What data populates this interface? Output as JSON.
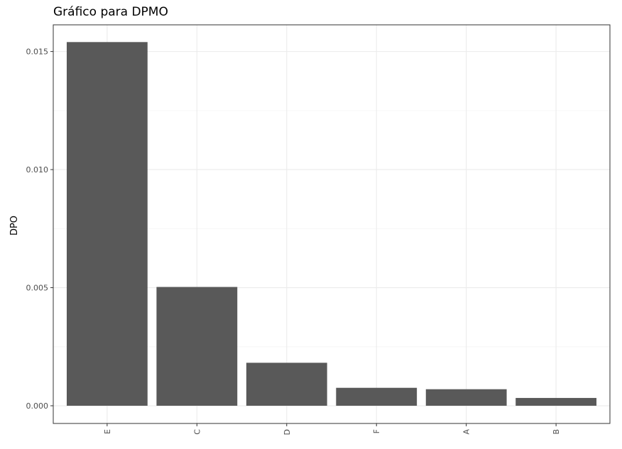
{
  "chart_data": {
    "type": "bar",
    "title": "Gráfico para DPMO",
    "xlabel": "",
    "ylabel": "DPO",
    "categories": [
      "E",
      "C",
      "D",
      "F",
      "A",
      "B"
    ],
    "values": [
      0.0154,
      0.00503,
      0.00182,
      0.00076,
      0.0007,
      0.00033
    ],
    "ylim": [
      -0.00075,
      0.01613
    ],
    "yticks": [
      0.0,
      0.005,
      0.01,
      0.015
    ],
    "ytick_labels": [
      "0.000",
      "0.005",
      "0.010",
      "0.015"
    ],
    "grid": true,
    "legend": "none",
    "colors": {
      "bar": "#595959",
      "grid_major": "#ebebeb",
      "grid_minor": "#f5f5f5",
      "panel_border": "#333333",
      "tick_text": "#4d4d4d",
      "title_text": "#000000"
    }
  }
}
